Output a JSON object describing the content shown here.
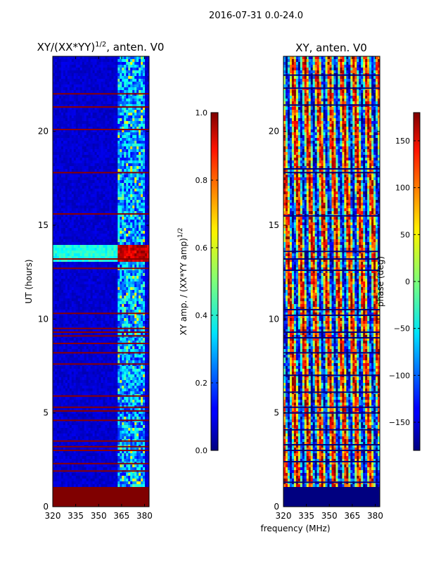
{
  "suptitle": "2016-07-31 0.0-24.0",
  "chart_data": [
    {
      "type": "heatmap",
      "title": "XY/(XX*YY)^(1/2), anten. V0",
      "title_main": "XY/(XX*YY)",
      "title_sup": "1/2",
      "title_tail": ", anten. V0",
      "xlabel": "frequency (MHz)",
      "ylabel": "UT (hours)",
      "xlim": [
        320,
        383
      ],
      "ylim": [
        0,
        24
      ],
      "xticks": [
        320,
        335,
        350,
        365,
        380
      ],
      "yticks": [
        0,
        5,
        10,
        15,
        20
      ],
      "colormap": "jet",
      "colorbar": {
        "label_main": "XY amp. / (XX*YY amp)",
        "label_sup": "1/2",
        "range": [
          0.0,
          1.0
        ],
        "ticks": [
          "0.0",
          "0.2",
          "0.4",
          "0.6",
          "0.8",
          "1.0"
        ]
      },
      "features": {
        "background_value": 0.05,
        "flagged_block_hours": [
          0,
          1
        ],
        "flagged_value": 1.0,
        "bright_band_freq_mhz": [
          362,
          380
        ],
        "bright_band_value": 0.3,
        "strong_feature_hours": [
          13.0,
          13.9
        ],
        "flag_lines_hours": [
          1.9,
          2.3,
          3.0,
          3.2,
          3.5,
          4.6,
          5.1,
          5.3,
          5.9,
          7.6,
          8.2,
          8.7,
          9.1,
          9.3,
          9.5,
          10.3,
          12.7,
          13.2,
          15.6,
          17.8,
          20.1,
          21.3,
          22.0
        ]
      }
    },
    {
      "type": "heatmap",
      "title": "XY, anten. V0",
      "xlabel": "frequency (MHz)",
      "ylabel": "",
      "xlim": [
        320,
        383
      ],
      "ylim": [
        0,
        24
      ],
      "xticks": [
        320,
        335,
        350,
        365,
        380
      ],
      "yticks": [
        0,
        5,
        10,
        15,
        20
      ],
      "colormap": "jet",
      "colorbar": {
        "label": "phase (deg)",
        "range": [
          -180,
          180
        ],
        "ticks": [
          "150",
          "100",
          "50",
          "0",
          "−50",
          "−100",
          "−150"
        ]
      },
      "features": {
        "flagged_block_hours": [
          0,
          1
        ],
        "flagged_value": -180,
        "phase_stripes_period_mhz": 8,
        "flag_lines_hours": [
          1.3,
          2.4,
          3.0,
          3.3,
          4.1,
          5.0,
          5.3,
          6.1,
          7.0,
          8.2,
          9.0,
          9.3,
          10.2,
          10.5,
          12.6,
          13.2,
          13.6,
          15.5,
          17.8,
          18.0,
          21.4,
          22.3,
          23.0
        ]
      }
    }
  ]
}
